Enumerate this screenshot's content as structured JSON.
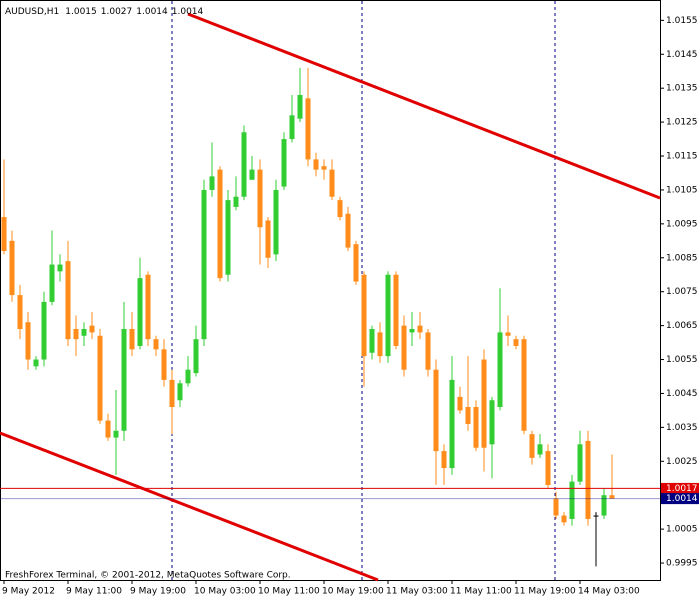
{
  "chart_data": {
    "type": "candlestick",
    "symbol": "AUDUSD,H1",
    "footer": "FreshForex Terminal, © 2001-2012, MetaQuotes Software Corp.",
    "categories": [
      "9 May 2012",
      null,
      null,
      null,
      null,
      null,
      null,
      null,
      "9 May 11:00",
      null,
      null,
      null,
      null,
      null,
      null,
      null,
      "9 May 19:00",
      null,
      null,
      null,
      null,
      null,
      null,
      null,
      "10 May 03:00",
      null,
      null,
      null,
      null,
      null,
      null,
      null,
      "10 May 11:00",
      null,
      null,
      null,
      null,
      null,
      null,
      null,
      "10 May 19:00",
      null,
      null,
      null,
      null,
      null,
      null,
      null,
      "11 May 03:00",
      null,
      null,
      null,
      null,
      null,
      null,
      null,
      "11 May 11:00",
      null,
      null,
      null,
      null,
      null,
      null,
      null,
      "11 May 19:00",
      null,
      null,
      null,
      null,
      null,
      null,
      null,
      "14 May 03:00",
      null,
      null,
      null,
      null
    ],
    "open": [
      1.0097,
      1.009,
      1.0074,
      1.0066,
      1.0053,
      1.0055,
      1.0072,
      1.0081,
      1.0084,
      1.0064,
      1.0062,
      1.0065,
      1.0062,
      1.0037,
      1.0032,
      1.0034,
      1.0064,
      1.0059,
      1.008,
      1.0061,
      1.0058,
      1.0049,
      1.0043,
      1.0048,
      1.0051,
      1.0061,
      1.0105,
      1.0111,
      1.008,
      1.01,
      1.0103,
      1.0108,
      1.0111,
      1.0096,
      1.0086,
      1.0106,
      1.012,
      1.0126,
      1.0132,
      1.0114,
      1.0112,
      1.0111,
      1.0102,
      1.0098,
      1.0089,
      1.008,
      1.0057,
      1.0063,
      1.0056,
      1.008,
      1.0065,
      1.0063,
      1.0065,
      1.0063,
      1.0052,
      1.0028,
      1.0023,
      1.0044,
      1.0041,
      1.0041,
      1.0055,
      1.003,
      1.0041,
      1.0063,
      1.0061,
      1.0061,
      1.0033,
      1.0027,
      1.0028,
      1.0014,
      1.0009,
      1.0008,
      1.0019,
      1.0031,
      1.0009,
      1.0009,
      1.0015
    ],
    "high": [
      1.0114,
      1.0093,
      1.0077,
      1.0069,
      1.0056,
      1.0075,
      1.0093,
      1.0086,
      1.009,
      1.0068,
      1.0066,
      1.0069,
      1.0064,
      1.0039,
      1.0046,
      1.0072,
      1.0069,
      1.0085,
      1.0081,
      1.0062,
      1.0061,
      1.0052,
      1.0049,
      1.0056,
      1.0065,
      1.0108,
      1.0119,
      1.0112,
      1.0105,
      1.0109,
      1.0124,
      1.0115,
      1.0114,
      1.0097,
      1.0108,
      1.0122,
      1.0133,
      1.0141,
      1.0141,
      1.0116,
      1.0114,
      1.0114,
      1.0103,
      1.01,
      1.009,
      1.0081,
      1.0065,
      1.0066,
      1.0081,
      1.0081,
      1.0068,
      1.0069,
      1.0069,
      1.0064,
      1.0055,
      1.003,
      1.0056,
      1.0047,
      1.0056,
      1.0043,
      1.0058,
      1.0044,
      1.0076,
      1.0068,
      1.0062,
      1.0062,
      1.0034,
      1.0033,
      1.003,
      1.0016,
      1.001,
      1.0021,
      1.0034,
      1.0034,
      1.001,
      1.0017,
      1.0027
    ],
    "low": [
      1.0086,
      1.0072,
      1.0061,
      1.0052,
      1.0052,
      1.0053,
      1.0071,
      1.0078,
      1.0059,
      1.0056,
      1.0059,
      1.0061,
      1.0036,
      1.0031,
      1.0021,
      1.0031,
      1.0056,
      1.0058,
      1.0059,
      1.0056,
      1.0047,
      1.0033,
      1.0041,
      1.0047,
      1.005,
      1.0059,
      1.0103,
      1.0078,
      1.0078,
      1.0099,
      1.0102,
      1.0108,
      1.0083,
      1.0082,
      1.0084,
      1.0105,
      1.0119,
      1.0125,
      1.0112,
      1.0109,
      1.0108,
      1.0102,
      1.0096,
      1.0087,
      1.0077,
      1.0047,
      1.0055,
      1.0054,
      1.0054,
      1.0058,
      1.005,
      1.0059,
      1.0061,
      1.005,
      1.0018,
      1.0018,
      1.0021,
      1.0039,
      1.0034,
      1.0028,
      1.0022,
      1.002,
      1.004,
      1.0059,
      1.0058,
      1.0033,
      1.0024,
      1.0026,
      1.0017,
      1.0008,
      1.0006,
      1.0006,
      1.0018,
      1.0006,
      0.9994,
      1.0008,
      1.0014
    ],
    "close": [
      1.0087,
      1.0074,
      1.0064,
      1.0055,
      1.0055,
      1.0072,
      1.0083,
      1.0083,
      1.0061,
      1.0061,
      1.0064,
      1.0063,
      1.0037,
      1.0032,
      1.0034,
      1.0064,
      1.0058,
      1.0079,
      1.0061,
      1.0058,
      1.0049,
      1.0041,
      1.0048,
      1.0052,
      1.0061,
      1.0105,
      1.0109,
      1.0079,
      1.0102,
      1.0103,
      1.0122,
      1.0111,
      1.0094,
      1.0085,
      1.0105,
      1.012,
      1.0127,
      1.0133,
      1.0114,
      1.0111,
      1.0111,
      1.0103,
      1.0097,
      1.0088,
      1.0078,
      1.0056,
      1.0064,
      1.0056,
      1.008,
      1.0059,
      1.0052,
      1.0064,
      1.0063,
      1.0052,
      1.0028,
      1.0023,
      1.0049,
      1.004,
      1.0036,
      1.0029,
      1.0029,
      1.0043,
      1.0063,
      1.0062,
      1.0059,
      1.0034,
      1.0026,
      1.003,
      1.0018,
      1.0009,
      1.0007,
      1.0019,
      1.003,
      1.0008,
      1.0009,
      1.0015,
      1.0014
    ],
    "up_color": "#32cd32",
    "down_color": "#ff8c1a",
    "flat_color": "#000000",
    "ylim": [
      0.999,
      1.0161
    ],
    "yticks": [
      1.0155,
      1.0145,
      1.0135,
      1.0125,
      1.0115,
      1.0105,
      1.0095,
      1.0085,
      1.0075,
      1.0065,
      1.0055,
      1.0045,
      1.0035,
      1.0025,
      1.0015,
      1.0005,
      0.9995
    ],
    "price_lines": [
      {
        "value": 1.0017,
        "color": "#e00000"
      },
      {
        "value": 1.0014,
        "color": "#000080"
      }
    ]
  }
}
